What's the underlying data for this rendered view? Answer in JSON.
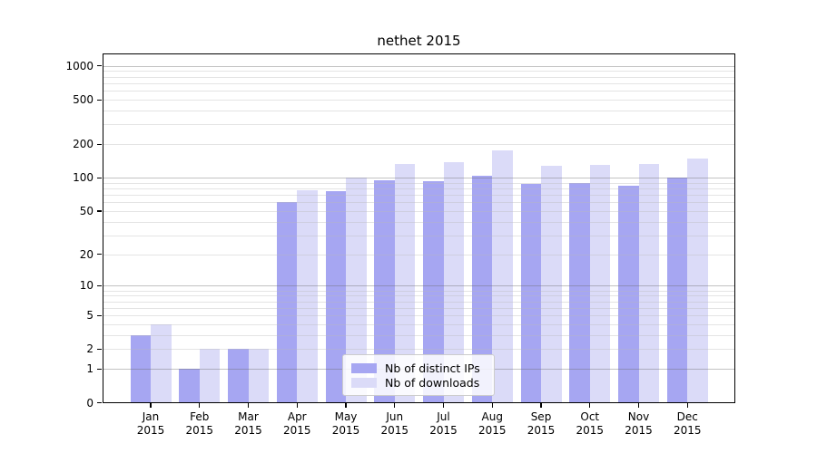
{
  "chart_data": {
    "type": "bar",
    "title": "nethet 2015",
    "categories": [
      "Jan 2015",
      "Feb 2015",
      "Mar 2015",
      "Apr 2015",
      "May 2015",
      "Jun 2015",
      "Jul 2015",
      "Aug 2015",
      "Sep 2015",
      "Oct 2015",
      "Nov 2015",
      "Dec 2015"
    ],
    "series": [
      {
        "name": "Nb of distinct IPs",
        "color": "#a6a6f2",
        "values": [
          3,
          1,
          2,
          60,
          76,
          95,
          94,
          105,
          88,
          90,
          85,
          100
        ]
      },
      {
        "name": "Nb of downloads",
        "color": "#dbdbf8",
        "values": [
          4,
          2,
          2,
          77,
          100,
          134,
          138,
          177,
          128,
          130,
          132,
          150
        ]
      }
    ],
    "yscale": "log1p",
    "ylim": [
      0,
      1270
    ],
    "yticks": [
      1000,
      500,
      200,
      100,
      50,
      20,
      10,
      5,
      2,
      1,
      0
    ],
    "grid": {
      "on": true,
      "major": [
        1,
        10,
        100,
        1000
      ],
      "minor": [
        2,
        3,
        4,
        5,
        6,
        7,
        8,
        9,
        20,
        30,
        40,
        50,
        60,
        70,
        80,
        90,
        200,
        300,
        400,
        500,
        600,
        700,
        800,
        900
      ]
    },
    "legend": {
      "position": "lower center",
      "entries": [
        "Nb of distinct IPs",
        "Nb of downloads"
      ]
    },
    "xlabel": "",
    "ylabel": ""
  }
}
